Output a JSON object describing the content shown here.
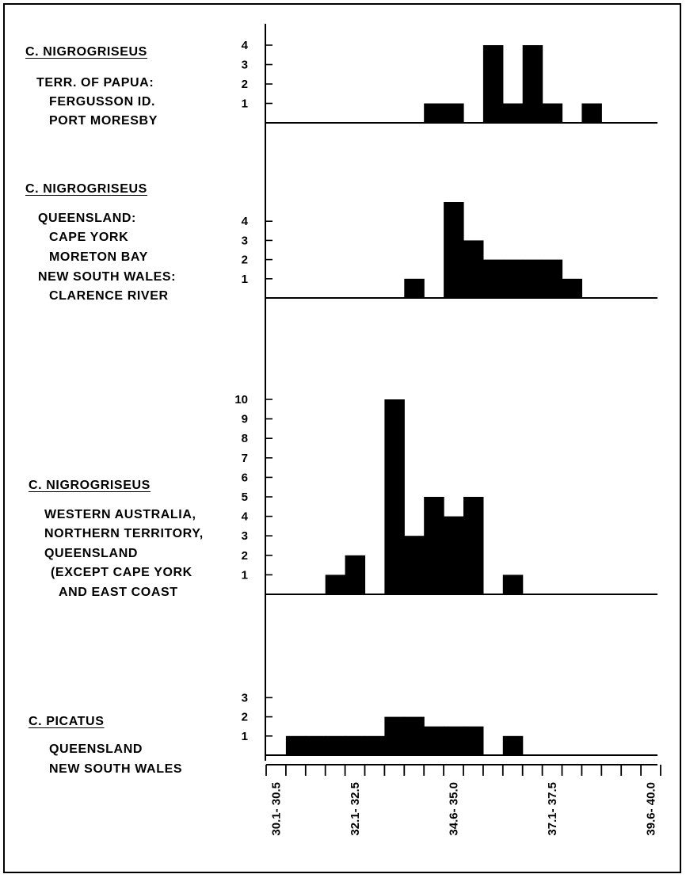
{
  "panels": [
    {
      "species": "C. NIGROGRISEUS",
      "species_lines": [
        "C.",
        "NIGROGRISEUS"
      ],
      "locality": [
        "TERR. OF PAPUA:",
        "FERGUSSON ID.",
        "PORT MORESBY"
      ]
    },
    {
      "species": "C. NIGROGRISEUS",
      "species_lines": [
        "C.",
        "NIGROGRISEUS"
      ],
      "locality": [
        "QUEENSLAND:",
        "CAPE YORK",
        "MORETON BAY",
        "NEW SOUTH WALES:",
        "CLARENCE RIVER"
      ]
    },
    {
      "species": "C. NIGROGRISEUS",
      "species_lines": [
        "C.",
        "NIGROGRISEUS"
      ],
      "locality": [
        "WESTERN AUSTRALIA,",
        "NORTHERN TERRITORY,",
        "QUEENSLAND",
        "(EXCEPT CAPE YORK",
        "AND EAST COAST"
      ]
    },
    {
      "species": "C. PICATUS",
      "species_lines": [
        "C.",
        "PICATUS"
      ],
      "locality": [
        "QUEENSLAND",
        "NEW SOUTH WALES"
      ]
    }
  ],
  "chart_data": {
    "type": "bar",
    "x_tick_labels": [
      "30.1- 30.5",
      "32.1- 32.5",
      "34.6- 35.0",
      "37.1- 37.5",
      "39.6- 40.0"
    ],
    "x_range": [
      30.0,
      40.0
    ],
    "bin_width": 0.5,
    "charts": [
      {
        "y_ticks": [
          "1",
          "2",
          "3",
          "4"
        ],
        "ylim": [
          0,
          4
        ],
        "bars": [
          [
            34.1,
            1
          ],
          [
            34.6,
            1
          ],
          [
            35.6,
            4
          ],
          [
            36.1,
            1
          ],
          [
            36.6,
            4
          ],
          [
            37.1,
            1
          ],
          [
            38.1,
            1
          ]
        ]
      },
      {
        "y_ticks": [
          "1",
          "2",
          "3",
          "4"
        ],
        "ylim": [
          0,
          4
        ],
        "bars": [
          [
            33.6,
            1
          ],
          [
            34.6,
            5
          ],
          [
            35.1,
            3
          ],
          [
            35.6,
            2
          ],
          [
            36.1,
            2
          ],
          [
            36.6,
            2
          ],
          [
            37.1,
            2
          ],
          [
            37.6,
            1
          ]
        ]
      },
      {
        "y_ticks": [
          "1",
          "2",
          "3",
          "4",
          "5",
          "6",
          "7",
          "8",
          "9",
          "10"
        ],
        "ylim": [
          0,
          10
        ],
        "bars": [
          [
            31.6,
            1
          ],
          [
            32.1,
            2
          ],
          [
            33.1,
            10
          ],
          [
            33.6,
            3
          ],
          [
            34.1,
            5
          ],
          [
            34.6,
            4
          ],
          [
            35.1,
            5
          ],
          [
            36.1,
            1
          ]
        ]
      },
      {
        "y_ticks": [
          "1",
          "2",
          "3"
        ],
        "ylim": [
          0,
          3
        ],
        "bars": [
          [
            30.6,
            1
          ],
          [
            31.1,
            1
          ],
          [
            31.6,
            1
          ],
          [
            32.1,
            1
          ],
          [
            32.6,
            1
          ],
          [
            33.1,
            2
          ],
          [
            33.6,
            2
          ],
          [
            34.1,
            1.5
          ],
          [
            34.6,
            1.5
          ],
          [
            35.1,
            1.5
          ],
          [
            36.1,
            1
          ]
        ]
      }
    ]
  }
}
